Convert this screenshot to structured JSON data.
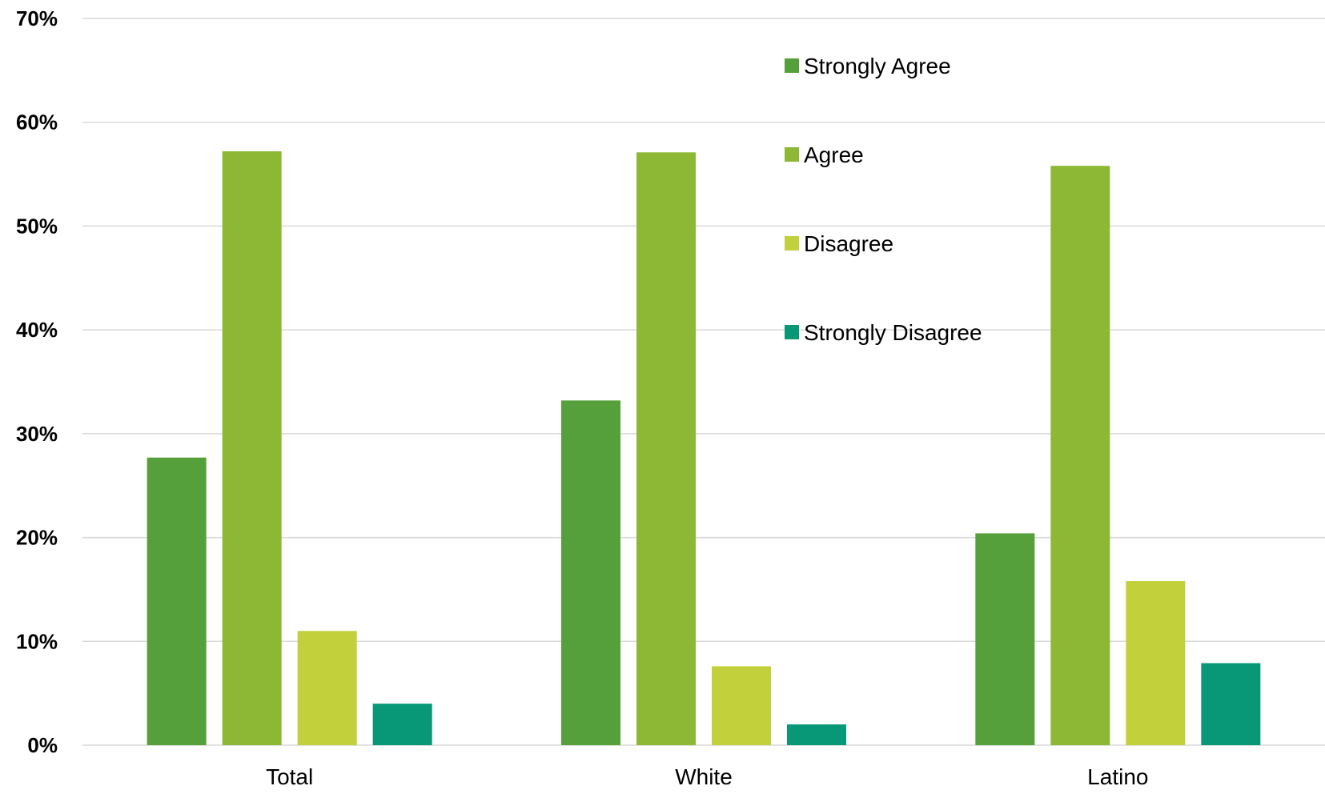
{
  "chart_data": {
    "type": "bar",
    "title": "",
    "xlabel": "",
    "ylabel": "",
    "categories": [
      "Total",
      "White",
      "Latino"
    ],
    "series": [
      {
        "name": "Strongly Agree",
        "color": "#55a03a",
        "values": [
          27.7,
          33.2,
          20.4
        ]
      },
      {
        "name": "Agree",
        "color": "#8cb835",
        "values": [
          57.2,
          57.1,
          55.8
        ]
      },
      {
        "name": "Disagree",
        "color": "#c1d03b",
        "values": [
          11.0,
          7.6,
          15.8
        ]
      },
      {
        "name": "Strongly Disagree",
        "color": "#089877",
        "values": [
          4.0,
          2.0,
          7.9
        ]
      }
    ],
    "ylim": [
      0,
      70
    ],
    "yticks": [
      "0%",
      "10%",
      "20%",
      "30%",
      "40%",
      "50%",
      "60%",
      "70%"
    ],
    "grid": true,
    "legend_position": "top-center"
  }
}
